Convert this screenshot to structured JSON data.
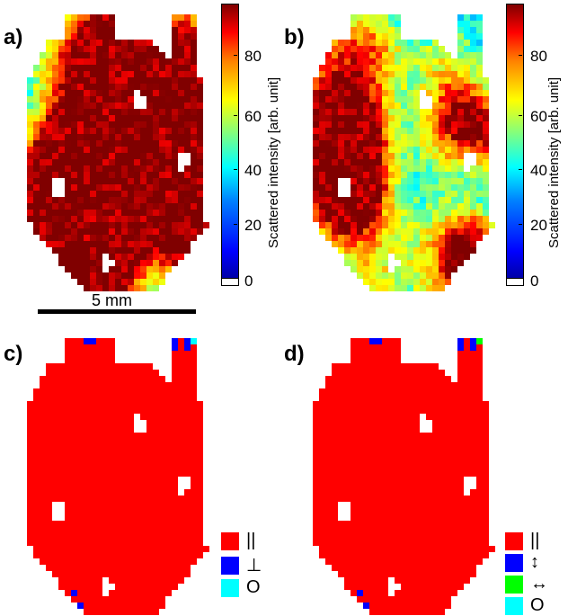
{
  "panels": {
    "a": {
      "label": "a)"
    },
    "b": {
      "label": "b)"
    },
    "c": {
      "label": "c)"
    },
    "d": {
      "label": "d)"
    }
  },
  "colorbar": {
    "title": "Scattered intensity [arb. unit]",
    "ticks": [
      "0",
      "20",
      "40",
      "60",
      "80"
    ]
  },
  "scale_bar": {
    "label": "5 mm"
  },
  "legend_c": [
    {
      "symbol": "||",
      "color": "#ff0000"
    },
    {
      "symbol": "⊥",
      "color": "#0000ff"
    },
    {
      "symbol": "O",
      "color": "#00ffff"
    }
  ],
  "legend_d": [
    {
      "symbol": "||",
      "color": "#ff0000"
    },
    {
      "symbol": "↕",
      "color": "#0000ff"
    },
    {
      "symbol": "↔",
      "color": "#00ff00"
    },
    {
      "symbol": "O",
      "color": "#00ffff"
    }
  ],
  "colors": {
    "red": "#ff0000",
    "blue": "#0000ff",
    "cyan": "#00ffff",
    "green": "#00ff00"
  }
}
